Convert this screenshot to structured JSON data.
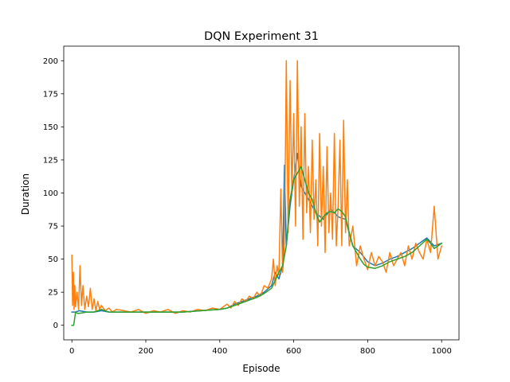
{
  "chart_data": {
    "type": "line",
    "title": "DQN Experiment 31",
    "xlabel": "Episode",
    "ylabel": "Duration",
    "xlim": [
      -22,
      1047
    ],
    "ylim": [
      -11,
      211
    ],
    "x_ticks": [
      0,
      200,
      400,
      600,
      800,
      1000
    ],
    "y_ticks": [
      0,
      25,
      50,
      75,
      100,
      125,
      150,
      175,
      200
    ],
    "x_tick_labels": [
      "0",
      "200",
      "400",
      "600",
      "800",
      "1000"
    ],
    "y_tick_labels": [
      "0",
      "25",
      "50",
      "75",
      "100",
      "125",
      "150",
      "175",
      "200"
    ],
    "grid": false,
    "legend": "none",
    "series": [
      {
        "color": "#1f77b4",
        "x": [
          0,
          10,
          20,
          40,
          60,
          80,
          100,
          150,
          200,
          250,
          300,
          350,
          400,
          420,
          440,
          460,
          480,
          500,
          520,
          540,
          550,
          560,
          570,
          575,
          580,
          590,
          600,
          610,
          620,
          630,
          640,
          660,
          680,
          700,
          720,
          740,
          760,
          780,
          800,
          820,
          840,
          860,
          880,
          900,
          920,
          940,
          960,
          980,
          1000
        ],
        "values": [
          10,
          10,
          11,
          10,
          10,
          11,
          10,
          10,
          10,
          10,
          10,
          11,
          12,
          13,
          16,
          18,
          20,
          22,
          25,
          30,
          40,
          35,
          45,
          121,
          60,
          90,
          110,
          130,
          105,
          100,
          95,
          85,
          80,
          88,
          82,
          80,
          60,
          55,
          48,
          45,
          47,
          50,
          52,
          55,
          58,
          62,
          66,
          60,
          62
        ]
      },
      {
        "color": "#ff7f0e",
        "x": [
          0,
          2,
          4,
          6,
          8,
          10,
          14,
          18,
          22,
          26,
          30,
          35,
          40,
          45,
          50,
          55,
          60,
          65,
          70,
          75,
          80,
          90,
          100,
          110,
          120,
          140,
          160,
          180,
          200,
          220,
          240,
          260,
          280,
          300,
          320,
          340,
          360,
          380,
          400,
          410,
          420,
          430,
          440,
          450,
          460,
          470,
          480,
          490,
          500,
          510,
          520,
          530,
          540,
          545,
          550,
          555,
          560,
          565,
          570,
          575,
          580,
          585,
          590,
          595,
          600,
          605,
          610,
          615,
          620,
          625,
          630,
          635,
          640,
          645,
          650,
          655,
          660,
          665,
          670,
          675,
          680,
          685,
          690,
          695,
          700,
          705,
          710,
          715,
          720,
          725,
          730,
          735,
          740,
          745,
          750,
          760,
          770,
          780,
          790,
          800,
          810,
          820,
          830,
          840,
          850,
          860,
          870,
          880,
          890,
          900,
          910,
          920,
          930,
          940,
          950,
          960,
          970,
          980,
          990,
          1000
        ],
        "values": [
          53,
          15,
          40,
          12,
          30,
          14,
          25,
          12,
          45,
          15,
          30,
          12,
          22,
          14,
          28,
          12,
          20,
          11,
          18,
          12,
          15,
          11,
          13,
          10,
          12,
          11,
          10,
          12,
          9,
          11,
          10,
          12,
          9,
          11,
          10,
          12,
          11,
          13,
          12,
          14,
          16,
          13,
          18,
          15,
          20,
          18,
          22,
          20,
          25,
          22,
          30,
          28,
          35,
          50,
          30,
          45,
          38,
          103,
          40,
          60,
          200,
          70,
          185,
          100,
          160,
          75,
          200,
          90,
          150,
          65,
          160,
          85,
          120,
          70,
          140,
          80,
          110,
          60,
          145,
          75,
          120,
          55,
          135,
          70,
          100,
          65,
          145,
          60,
          90,
          140,
          60,
          155,
          70,
          110,
          60,
          75,
          45,
          60,
          50,
          42,
          55,
          45,
          52,
          48,
          40,
          55,
          45,
          50,
          55,
          45,
          60,
          50,
          62,
          55,
          50,
          65,
          55,
          90,
          50,
          60
        ]
      },
      {
        "color": "#2ca02c",
        "x": [
          0,
          5,
          10,
          15,
          20,
          40,
          60,
          80,
          100,
          150,
          200,
          250,
          300,
          350,
          400,
          420,
          440,
          460,
          480,
          500,
          520,
          540,
          560,
          570,
          580,
          590,
          600,
          610,
          620,
          630,
          640,
          650,
          660,
          670,
          680,
          690,
          700,
          710,
          720,
          730,
          740,
          750,
          760,
          770,
          780,
          790,
          800,
          820,
          840,
          860,
          880,
          900,
          920,
          940,
          960,
          970,
          980,
          990,
          1000
        ],
        "values": [
          0,
          0,
          10,
          9,
          9,
          10,
          10,
          12,
          10,
          10,
          10,
          10,
          10,
          11,
          12,
          13,
          15,
          17,
          19,
          21,
          24,
          28,
          40,
          45,
          60,
          95,
          110,
          115,
          120,
          110,
          100,
          95,
          85,
          78,
          82,
          85,
          86,
          85,
          88,
          86,
          82,
          70,
          60,
          55,
          50,
          46,
          44,
          43,
          45,
          48,
          50,
          52,
          55,
          60,
          65,
          62,
          58,
          60,
          62
        ]
      }
    ]
  }
}
